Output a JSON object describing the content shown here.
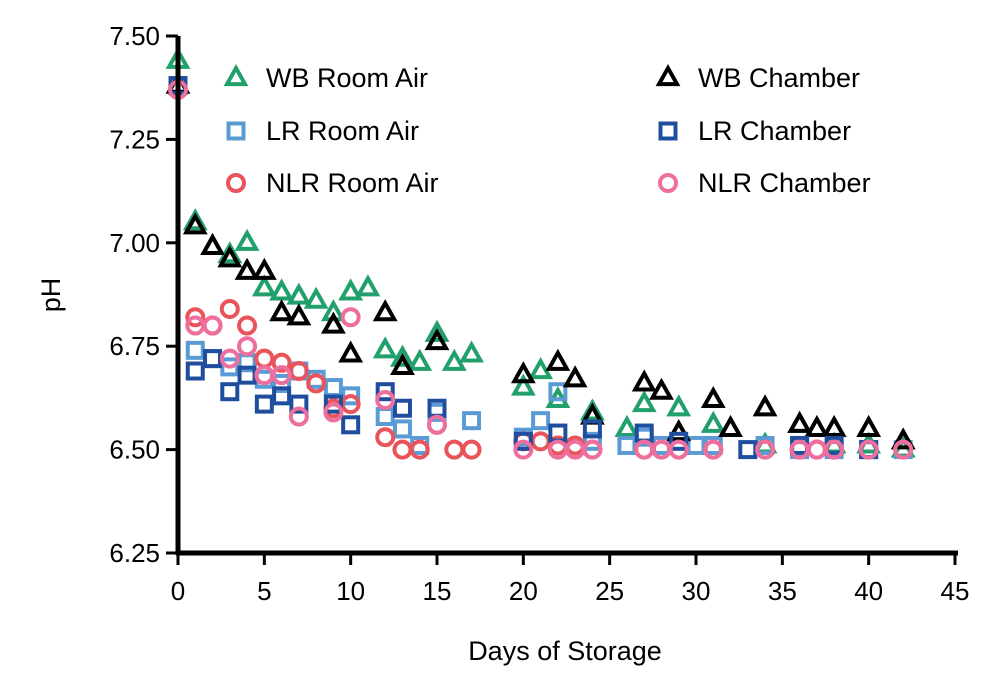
{
  "chart_data": {
    "type": "scatter",
    "title": "",
    "xlabel": "Days of Storage",
    "ylabel": "pH",
    "xlim": [
      0,
      45
    ],
    "ylim": [
      6.25,
      7.5
    ],
    "xticks": [
      0,
      5,
      10,
      15,
      20,
      25,
      30,
      35,
      40,
      45
    ],
    "xtick_labels": [
      "0",
      "5",
      "10",
      "15",
      "20",
      "25",
      "30",
      "35",
      "40",
      "45"
    ],
    "yticks": [
      6.25,
      6.5,
      6.75,
      7.0,
      7.25,
      7.5
    ],
    "ytick_labels": [
      "6.25",
      "6.50",
      "6.75",
      "7.00",
      "7.25",
      "7.50"
    ],
    "grid": false,
    "legend_placement": "top",
    "series": [
      {
        "name": "WB Room Air",
        "marker": "triangle",
        "color": "#21A06B",
        "x": [
          0,
          1,
          2,
          3,
          4,
          5,
          6,
          7,
          8,
          9,
          10,
          11,
          12,
          13,
          14,
          15,
          16,
          17,
          20,
          21,
          22,
          24,
          26,
          27,
          29,
          31,
          34,
          36,
          38,
          40,
          42
        ],
        "y": [
          7.44,
          7.05,
          6.99,
          6.97,
          7.0,
          6.89,
          6.88,
          6.87,
          6.86,
          6.83,
          6.88,
          6.89,
          6.74,
          6.72,
          6.71,
          6.78,
          6.71,
          6.73,
          6.65,
          6.69,
          6.62,
          6.59,
          6.55,
          6.61,
          6.6,
          6.56,
          6.51,
          6.56,
          6.51,
          6.51,
          6.5
        ]
      },
      {
        "name": "LR Room Air",
        "marker": "square",
        "color": "#5B9BD5",
        "x": [
          0,
          1,
          2,
          3,
          4,
          5,
          6,
          7,
          8,
          9,
          10,
          12,
          13,
          14,
          15,
          17,
          20,
          21,
          22,
          24,
          26,
          27,
          28,
          30,
          31,
          34,
          36,
          38,
          40,
          42
        ],
        "y": [
          7.38,
          6.74,
          6.72,
          6.7,
          6.71,
          6.67,
          6.66,
          6.69,
          6.67,
          6.65,
          6.63,
          6.58,
          6.55,
          6.51,
          6.59,
          6.57,
          6.53,
          6.57,
          6.64,
          6.52,
          6.51,
          6.53,
          6.51,
          6.51,
          6.51,
          6.51,
          6.5,
          6.5,
          6.5,
          6.5
        ]
      },
      {
        "name": "NLR Room Air",
        "marker": "circle",
        "color": "#E8545A",
        "x": [
          0,
          1,
          2,
          3,
          4,
          5,
          6,
          7,
          8,
          9,
          10,
          12,
          13,
          14,
          15,
          16,
          17,
          20,
          21,
          22,
          23,
          24,
          27,
          28,
          29,
          31,
          34,
          36,
          37,
          38,
          40,
          42
        ],
        "y": [
          7.37,
          6.82,
          6.8,
          6.84,
          6.8,
          6.72,
          6.71,
          6.69,
          6.66,
          6.6,
          6.61,
          6.53,
          6.5,
          6.5,
          6.56,
          6.5,
          6.5,
          6.52,
          6.52,
          6.51,
          6.51,
          6.5,
          6.5,
          6.5,
          6.5,
          6.5,
          6.5,
          6.5,
          6.5,
          6.5,
          6.5,
          6.5
        ]
      },
      {
        "name": "WB Chamber",
        "marker": "triangle",
        "color": "#000000",
        "x": [
          0,
          1,
          2,
          3,
          4,
          5,
          6,
          7,
          9,
          10,
          12,
          13,
          15,
          20,
          22,
          23,
          24,
          27,
          28,
          29,
          31,
          32,
          34,
          36,
          37,
          38,
          40,
          42
        ],
        "y": [
          7.38,
          7.04,
          6.99,
          6.96,
          6.93,
          6.93,
          6.83,
          6.82,
          6.8,
          6.73,
          6.83,
          6.7,
          6.76,
          6.68,
          6.71,
          6.67,
          6.58,
          6.66,
          6.64,
          6.54,
          6.62,
          6.55,
          6.6,
          6.56,
          6.55,
          6.55,
          6.55,
          6.52
        ]
      },
      {
        "name": "LR Chamber",
        "marker": "square",
        "color": "#1F4E9E",
        "x": [
          0,
          1,
          2,
          3,
          4,
          5,
          6,
          7,
          9,
          10,
          12,
          13,
          15,
          20,
          22,
          24,
          27,
          29,
          33,
          36,
          38,
          40
        ],
        "y": [
          7.38,
          6.69,
          6.72,
          6.64,
          6.68,
          6.61,
          6.63,
          6.61,
          6.61,
          6.56,
          6.64,
          6.6,
          6.6,
          6.52,
          6.54,
          6.55,
          6.54,
          6.52,
          6.5,
          6.51,
          6.51,
          6.5
        ]
      },
      {
        "name": "NLR Chamber",
        "marker": "circle",
        "color": "#EE6E9E",
        "x": [
          0,
          1,
          2,
          3,
          4,
          5,
          6,
          7,
          9,
          10,
          12,
          15,
          20,
          22,
          23,
          24,
          27,
          28,
          29,
          31,
          34,
          36,
          37,
          38,
          40,
          42
        ],
        "y": [
          7.37,
          6.8,
          6.8,
          6.72,
          6.75,
          6.68,
          6.68,
          6.58,
          6.59,
          6.82,
          6.62,
          6.56,
          6.5,
          6.5,
          6.5,
          6.5,
          6.5,
          6.5,
          6.5,
          6.5,
          6.5,
          6.5,
          6.5,
          6.5,
          6.5,
          6.5
        ]
      }
    ]
  }
}
